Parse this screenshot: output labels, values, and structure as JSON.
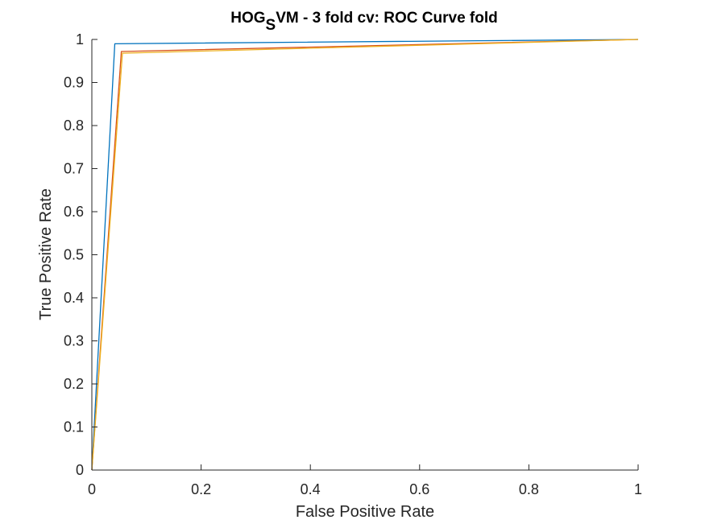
{
  "chart_data": {
    "type": "line",
    "title": {
      "prefix": "HOG",
      "subscript": "S",
      "suffix": "VM - 3 fold cv: ROC Curve fold"
    },
    "xlabel": "False Positive Rate",
    "ylabel": "True Positive Rate",
    "xlim": [
      0,
      1
    ],
    "ylim": [
      0,
      1
    ],
    "x_ticks": [
      0,
      0.2,
      0.4,
      0.6,
      0.8,
      1
    ],
    "x_tick_labels": [
      "0",
      "0.2",
      "0.4",
      "0.6",
      "0.8",
      "1"
    ],
    "y_ticks": [
      0,
      0.1,
      0.2,
      0.3,
      0.4,
      0.5,
      0.6,
      0.7,
      0.8,
      0.9,
      1
    ],
    "y_tick_labels": [
      "0",
      "0.1",
      "0.2",
      "0.3",
      "0.4",
      "0.5",
      "0.6",
      "0.7",
      "0.8",
      "0.9",
      "1"
    ],
    "grid": false,
    "legend": "none",
    "series": [
      {
        "color": "#0072BD",
        "x": [
          0,
          0.042,
          1
        ],
        "y": [
          0,
          0.99,
          1
        ]
      },
      {
        "color": "#D95319",
        "x": [
          0,
          0.054,
          1
        ],
        "y": [
          0,
          0.972,
          1
        ]
      },
      {
        "color": "#EDB120",
        "x": [
          0,
          0.056,
          1
        ],
        "y": [
          0,
          0.968,
          1
        ]
      }
    ]
  }
}
